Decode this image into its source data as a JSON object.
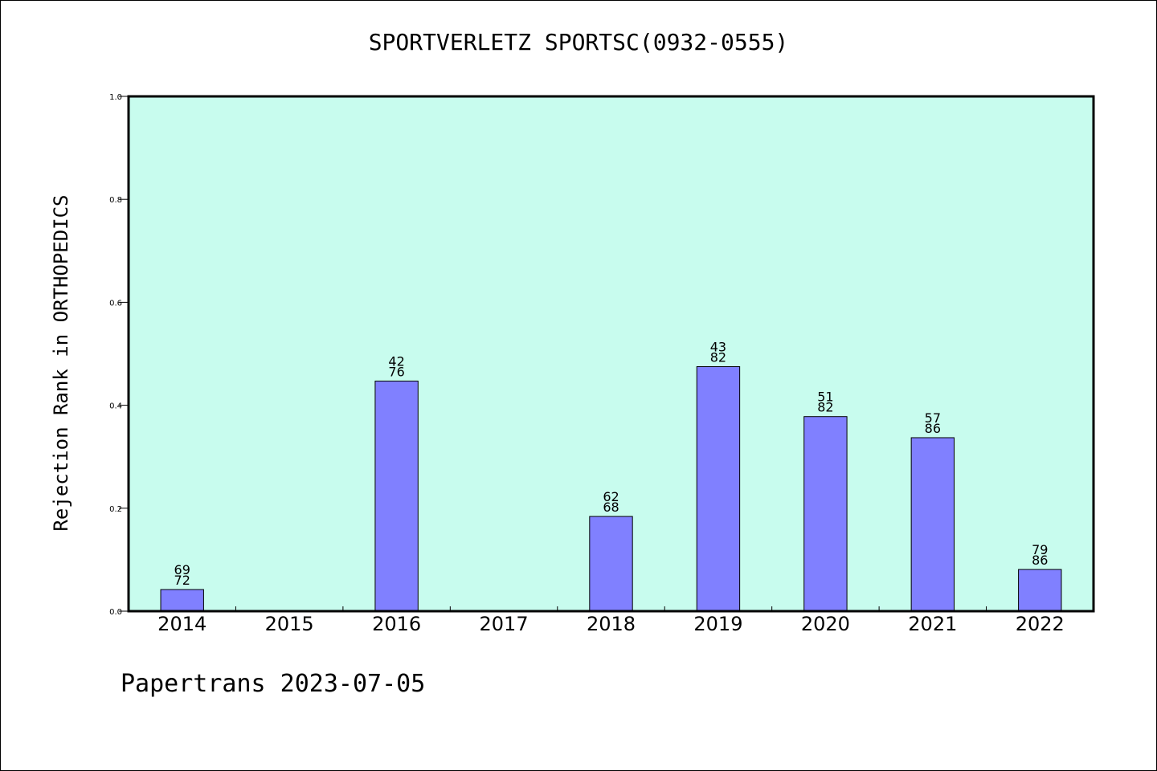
{
  "chart_data": {
    "type": "bar",
    "title": "SPORTVERLETZ SPORTSC(0932-0555)",
    "ylabel": "Rejection Rank in ORTHOPEDICS",
    "xlabel": "",
    "categories": [
      "2014",
      "2015",
      "2016",
      "2017",
      "2018",
      "2019",
      "2020",
      "2021",
      "2022"
    ],
    "values": [
      0.042,
      null,
      0.447,
      null,
      0.184,
      0.475,
      0.378,
      0.337,
      0.081
    ],
    "bar_labels": [
      [
        "69",
        "72"
      ],
      null,
      [
        "42",
        "76"
      ],
      null,
      [
        "62",
        "68"
      ],
      [
        "43",
        "82"
      ],
      [
        "51",
        "82"
      ],
      [
        "57",
        "86"
      ],
      [
        "79",
        "86"
      ]
    ],
    "ylim": [
      0.0,
      1.0
    ],
    "yticks": [
      "0.0",
      "0.2",
      "0.4",
      "0.6",
      "0.8",
      "1.0"
    ],
    "grid": false,
    "colors": {
      "plot_background": "#c8fcee",
      "bar_fill": "#8080ff",
      "bar_stroke": "#000000"
    }
  },
  "footer": {
    "text": "Papertrans 2023-07-05"
  }
}
